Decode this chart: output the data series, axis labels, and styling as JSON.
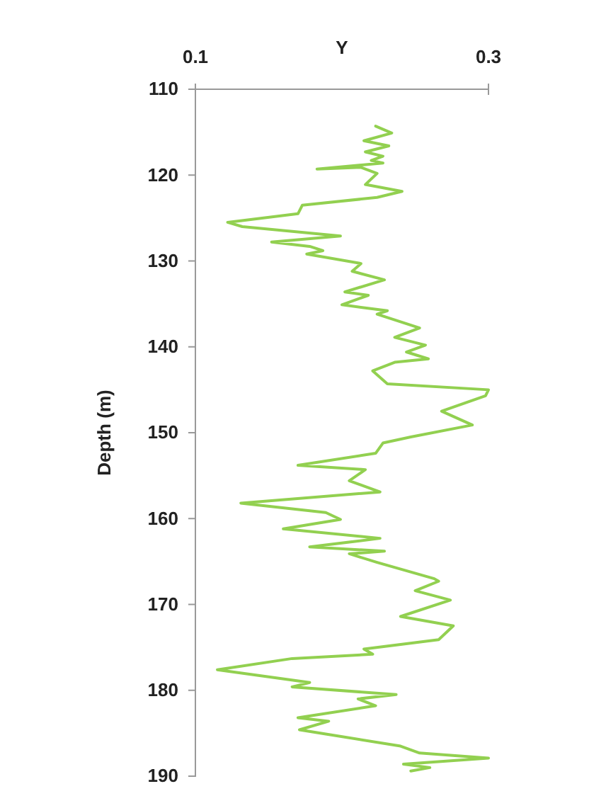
{
  "chart_data": {
    "type": "line",
    "xlabel": "Y",
    "ylabel": "Depth (m)",
    "xlim": [
      0.1,
      0.3
    ],
    "xticks": [
      0.1,
      0.3
    ],
    "ylim": [
      190,
      110
    ],
    "yticks": [
      110,
      120,
      130,
      140,
      150,
      160,
      170,
      180,
      190
    ],
    "marker": "none",
    "line_style": "solid",
    "series": [
      {
        "color": "#92d050",
        "x": [
          0.223,
          0.234,
          0.215,
          0.232,
          0.216,
          0.228,
          0.22,
          0.228,
          0.183,
          0.213,
          0.224,
          0.216,
          0.241,
          0.224,
          0.173,
          0.17,
          0.122,
          0.132,
          0.199,
          0.152,
          0.178,
          0.187,
          0.176,
          0.213,
          0.207,
          0.229,
          0.202,
          0.218,
          0.2,
          0.231,
          0.224,
          0.253,
          0.236,
          0.257,
          0.244,
          0.259,
          0.236,
          0.221,
          0.231,
          0.3,
          0.298,
          0.268,
          0.289,
          0.247,
          0.228,
          0.223,
          0.17,
          0.216,
          0.205,
          0.226,
          0.131,
          0.189,
          0.199,
          0.16,
          0.226,
          0.178,
          0.229,
          0.205,
          0.224,
          0.263,
          0.266,
          0.25,
          0.274,
          0.24,
          0.276,
          0.266,
          0.215,
          0.221,
          0.166,
          0.115,
          0.178,
          0.166,
          0.237,
          0.211,
          0.223,
          0.17,
          0.191,
          0.171,
          0.189,
          0.24,
          0.253,
          0.3,
          0.242,
          0.26,
          0.247
        ],
        "values": [
          114.3,
          115.1,
          116.0,
          116.6,
          117.3,
          117.8,
          118.3,
          118.6,
          119.3,
          119.1,
          119.8,
          121.1,
          121.9,
          122.6,
          123.5,
          124.5,
          125.5,
          126.0,
          127.1,
          127.8,
          128.3,
          128.8,
          129.2,
          130.3,
          131.2,
          132.2,
          133.6,
          134.0,
          135.1,
          135.8,
          136.2,
          137.8,
          138.9,
          139.8,
          140.6,
          141.4,
          141.8,
          142.8,
          144.3,
          145.0,
          145.7,
          147.5,
          149.1,
          150.5,
          151.2,
          152.4,
          153.8,
          154.3,
          155.6,
          156.9,
          158.2,
          159.3,
          160.1,
          161.2,
          162.3,
          163.3,
          163.8,
          164.1,
          165.1,
          167.0,
          167.3,
          168.4,
          169.5,
          171.4,
          172.5,
          174.1,
          175.2,
          175.8,
          176.3,
          177.6,
          179.1,
          179.6,
          180.5,
          181.0,
          181.8,
          183.2,
          183.6,
          184.6,
          185.1,
          186.5,
          187.3,
          187.9,
          188.6,
          189.0,
          189.4
        ]
      }
    ]
  }
}
